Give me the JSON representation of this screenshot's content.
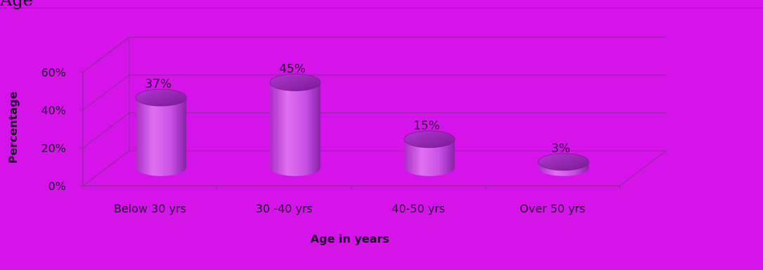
{
  "page": {
    "heading": "Age"
  },
  "chart_data": {
    "type": "bar",
    "style": "3d-cylinder",
    "categories": [
      "Below 30 yrs",
      "30 -40 yrs",
      "40-50 yrs",
      "Over 50 yrs"
    ],
    "values": [
      37,
      45,
      15,
      3
    ],
    "value_labels": [
      "37%",
      "45%",
      "15%",
      "3%"
    ],
    "xlabel": "Age in years",
    "ylabel": "Percentage",
    "ylim": [
      0,
      60
    ],
    "yticks": [
      "0%",
      "20%",
      "40%",
      "60%"
    ],
    "grid": true,
    "legend": "none",
    "colors": {
      "background": "#d414e8",
      "bar_body": "#c844e6",
      "bar_top": "#9a2ab8",
      "grid": "#8a2a98",
      "text": "#2a0a35"
    }
  }
}
